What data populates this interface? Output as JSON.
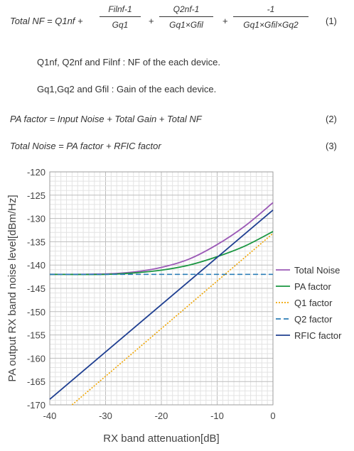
{
  "equations": {
    "eq1": {
      "lhs": "Total NF = Q1nf +",
      "frac1": {
        "num": "Filnf-1",
        "den": "Gq1"
      },
      "frac2": {
        "num": "Q2nf-1",
        "den": "Gq1×Gfil"
      },
      "frac3": {
        "num": "-1",
        "den": "Gq1×Gfil×Gq2"
      },
      "plus": "+",
      "number": "(1)"
    },
    "note1": "Q1nf, Q2nf and Filnf : NF of the each device.",
    "note2": "Gq1,Gq2 and Gfil : Gain of the each device.",
    "eq2": {
      "text": "PA factor = Input Noise + Total Gain + Total NF",
      "number": "(2)"
    },
    "eq3": {
      "text": "Total Noise = PA factor + RFIC factor",
      "number": "(3)"
    }
  },
  "chart_data": {
    "type": "line",
    "xlabel": "RX band attenuation[dB]",
    "ylabel": "PA output RX band noise level[dBm/Hz]",
    "xlim": [
      -40,
      0
    ],
    "ylim": [
      -170,
      -120
    ],
    "xticks": [
      -40,
      -30,
      -20,
      -10,
      0
    ],
    "yticks": [
      -120,
      -125,
      -130,
      -135,
      -140,
      -145,
      -150,
      -155,
      -160,
      -165,
      -170
    ],
    "grid": true,
    "legend": "right",
    "series": [
      {
        "name": "Total Noise",
        "color": "#9b59b6",
        "style": "solid",
        "x": [
          -40,
          -30,
          -25,
          -20,
          -15,
          -10,
          -5,
          0
        ],
        "y": [
          -142,
          -141.9,
          -141.5,
          -140.5,
          -138.7,
          -135.6,
          -131.6,
          -126.6
        ]
      },
      {
        "name": "PA factor",
        "color": "#1a9641",
        "style": "solid",
        "x": [
          -40,
          -30,
          -25,
          -20,
          -15,
          -10,
          -5,
          0
        ],
        "y": [
          -142,
          -142,
          -141.7,
          -141.1,
          -140.0,
          -138.2,
          -135.9,
          -132.8
        ]
      },
      {
        "name": "Q1 factor",
        "color": "#f0a500",
        "style": "dotted",
        "x": [
          -36,
          0
        ],
        "y": [
          -170,
          -133.2
        ]
      },
      {
        "name": "Q2 factor",
        "color": "#2c7fb8",
        "style": "dashed",
        "x": [
          -40,
          0
        ],
        "y": [
          -142,
          -142
        ]
      },
      {
        "name": "RFIC factor",
        "color": "#1f3f91",
        "style": "solid",
        "x": [
          -40,
          0
        ],
        "y": [
          -168.8,
          -128.2
        ]
      }
    ]
  }
}
